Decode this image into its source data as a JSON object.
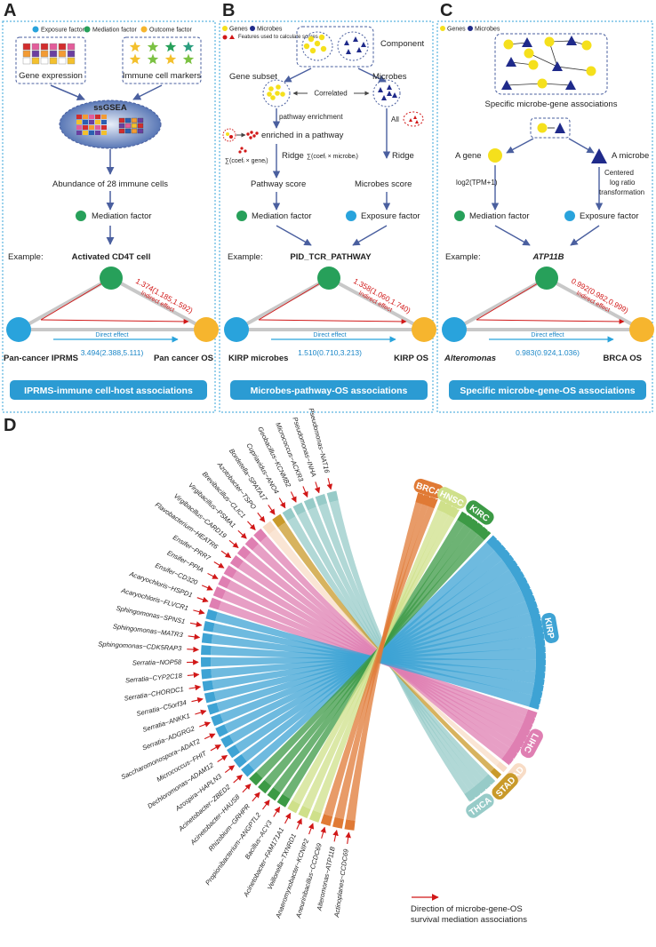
{
  "panels": {
    "A": {
      "letter": "A",
      "legend": [
        "Exposure factor",
        "Mediation factor",
        "Outcome factor"
      ],
      "gene_expression": "Gene expression",
      "immune_markers": "Immune cell markers",
      "method": "ssGSEA",
      "abundance": "Abundance of 28 immune cells",
      "mediation": "Mediation factor",
      "example_label": "Example:",
      "example_value": "Activated CD4T cell",
      "indirect_value": "1.374(1.185,1.592)",
      "indirect_label": "Indirect effect",
      "direct_label": "Direct effect",
      "direct_value": "3.494(2.388,5.111)",
      "exposure_node": "Pan-cancer IPRMS",
      "outcome_node": "Pan cancer OS",
      "banner": "IPRMS-immune cell-host associations"
    },
    "B": {
      "letter": "B",
      "legend_genes": "Genes",
      "legend_microbes": "Microbes",
      "legend_features": "Features used to calculate scores",
      "component": "Component",
      "gene_subset": "Gene subset",
      "microbes": "Microbes",
      "correlated": "Correlated",
      "pathway_enrichment": "pathway enrichment",
      "all": "All",
      "enriched": "enriched in a pathway",
      "ridge1": "Ridge",
      "ridge2": "Ridge",
      "formula_gene": "∑(coefᵢ × geneᵢ)",
      "formula_microbe": "∑(coefᵢ × microbeᵢ)",
      "pathway_score": "Pathway score",
      "microbes_score": "Microbes score",
      "mediation": "Mediation factor",
      "exposure": "Exposure factor",
      "example_label": "Example:",
      "example_value": "PID_TCR_PATHWAY",
      "indirect_value": "1.358(1.060,1.740)",
      "indirect_label": "Indirect effect",
      "direct_label": "Direct effect",
      "direct_value": "1.510(0.710,3.213)",
      "exposure_node": "KIRP microbes",
      "outcome_node": "KIRP OS",
      "banner": "Microbes-pathway-OS associations"
    },
    "C": {
      "letter": "C",
      "legend_genes": "Genes",
      "legend_microbes": "Microbes",
      "specific": "Specific microbe-gene associations",
      "a_gene": "A gene",
      "a_microbe": "A microbe",
      "log_transform": "log2(TPM+1)",
      "clr1": "Centered",
      "clr2": "log ratio",
      "clr3": "transformation",
      "mediation": "Mediation factor",
      "exposure": "Exposure factor",
      "example_label": "Example:",
      "example_value": "ATP11B",
      "indirect_value": "0.992(0.982,0.999)",
      "indirect_label": "Indirect effect",
      "direct_label": "Direct effect",
      "direct_value": "0.983(0.924,1.036)",
      "exposure_node": "Alteromonas",
      "outcome_node": "BRCA OS",
      "banner": "Specific microbe-gene-OS associations"
    },
    "D": {
      "letter": "D",
      "legend_text1": "Direction of microbe-gene-OS",
      "legend_text2": "survival mediation associations"
    }
  },
  "chord": {
    "cancers": [
      {
        "name": "BRCA",
        "color": "#e07a35",
        "start": -75,
        "end": -68
      },
      {
        "name": "HNSC",
        "color": "#cfe08a",
        "start": -67,
        "end": -60
      },
      {
        "name": "KIRC",
        "color": "#3c9a45",
        "start": -59,
        "end": -47
      },
      {
        "name": "KIRP",
        "color": "#3ea3d4",
        "start": -46,
        "end": 17
      },
      {
        "name": "LIHC",
        "color": "#df7fb2",
        "start": 18,
        "end": 38
      },
      {
        "name": "LUAD",
        "color": "#f8dcc6",
        "start": 39,
        "end": 41
      },
      {
        "name": "STAD",
        "color": "#c99a2a",
        "start": 42,
        "end": 44
      },
      {
        "name": "THCA",
        "color": "#97cbc8",
        "start": 45,
        "end": 56
      }
    ],
    "pairs": [
      {
        "label": "Pseudomonas−NAT16",
        "cancer": "THCA"
      },
      {
        "label": "Pseudomonas−INHA",
        "cancer": "THCA"
      },
      {
        "label": "Micrococcus−ACKR3",
        "cancer": "THCA"
      },
      {
        "label": "Geobacillus−KCNMB2",
        "cancer": "THCA"
      },
      {
        "label": "Cupriavidus−ANO4",
        "cancer": "THCA"
      },
      {
        "label": "Bordetella−SPATA17",
        "cancer": "STAD"
      },
      {
        "label": "Azotobacter−TSPO",
        "cancer": "LUAD"
      },
      {
        "label": "Brevibacillus−CLIC1",
        "cancer": "LIHC"
      },
      {
        "label": "Virgibacillus−PSMA1",
        "cancer": "LIHC"
      },
      {
        "label": "Virgibacillus−CARD19",
        "cancer": "LIHC"
      },
      {
        "label": "Flavobacterium−HEATR6",
        "cancer": "LIHC"
      },
      {
        "label": "Ensifer−PRR7",
        "cancer": "LIHC"
      },
      {
        "label": "Ensifer−PPIA",
        "cancer": "LIHC"
      },
      {
        "label": "Ensifer−CD320",
        "cancer": "LIHC"
      },
      {
        "label": "Acaryochloris−HSPD1",
        "cancer": "LIHC"
      },
      {
        "label": "Acaryochloris−FLVCR1",
        "cancer": "KIRP"
      },
      {
        "label": "Sphingomonas−SPNS1",
        "cancer": "KIRP"
      },
      {
        "label": "Sphingomonas−MATR3",
        "cancer": "KIRP"
      },
      {
        "label": "Sphingomonas−CDK5RAP3",
        "cancer": "KIRP"
      },
      {
        "label": "Serratia−NOP58",
        "cancer": "KIRP"
      },
      {
        "label": "Serratia−CYP2C18",
        "cancer": "KIRP"
      },
      {
        "label": "Serratia−CHORDC1",
        "cancer": "KIRP"
      },
      {
        "label": "Serratia−C5orf34",
        "cancer": "KIRP"
      },
      {
        "label": "Serratia−ANKK1",
        "cancer": "KIRP"
      },
      {
        "label": "Serratia−ADGRG2",
        "cancer": "KIRP"
      },
      {
        "label": "Saccharomonospora−ADAT2",
        "cancer": "KIRP"
      },
      {
        "label": "Micrococcus−FHIT",
        "cancer": "KIRP"
      },
      {
        "label": "Dechloromonas−ADAM12",
        "cancer": "KIRP"
      },
      {
        "label": "Azospira−HAPLN3",
        "cancer": "KIRP"
      },
      {
        "label": "Acinetobacter−ZBED2",
        "cancer": "KIRP"
      },
      {
        "label": "Acinetobacter−HAUS8",
        "cancer": "KIRC"
      },
      {
        "label": "Rhizobium−GRHPR",
        "cancer": "KIRC"
      },
      {
        "label": "Propionibacterium−ANGPTL2",
        "cancer": "KIRC"
      },
      {
        "label": "Bacillus−ACY3",
        "cancer": "KIRC"
      },
      {
        "label": "Acinetobacter−FAM171A1",
        "cancer": "HNSC"
      },
      {
        "label": "Veillonella−TXNRD1",
        "cancer": "HNSC"
      },
      {
        "label": "Anaeromyxobacter−KCNIP2",
        "cancer": "HNSC"
      },
      {
        "label": "Aneurinibacillus−CCDC69",
        "cancer": "BRCA"
      },
      {
        "label": "Alteromonas−ATP11B",
        "cancer": "BRCA"
      },
      {
        "label": "Actinoplanes−CCDC69",
        "cancer": "BRCA"
      }
    ]
  },
  "colors": {
    "exposure": "#29a3dc",
    "mediation": "#27a05a",
    "outcome": "#f6b52e",
    "banner": "#2b9bd3",
    "gene": "#f5e01c",
    "microbe": "#1f2a8a",
    "effect_red": "#d11818"
  }
}
